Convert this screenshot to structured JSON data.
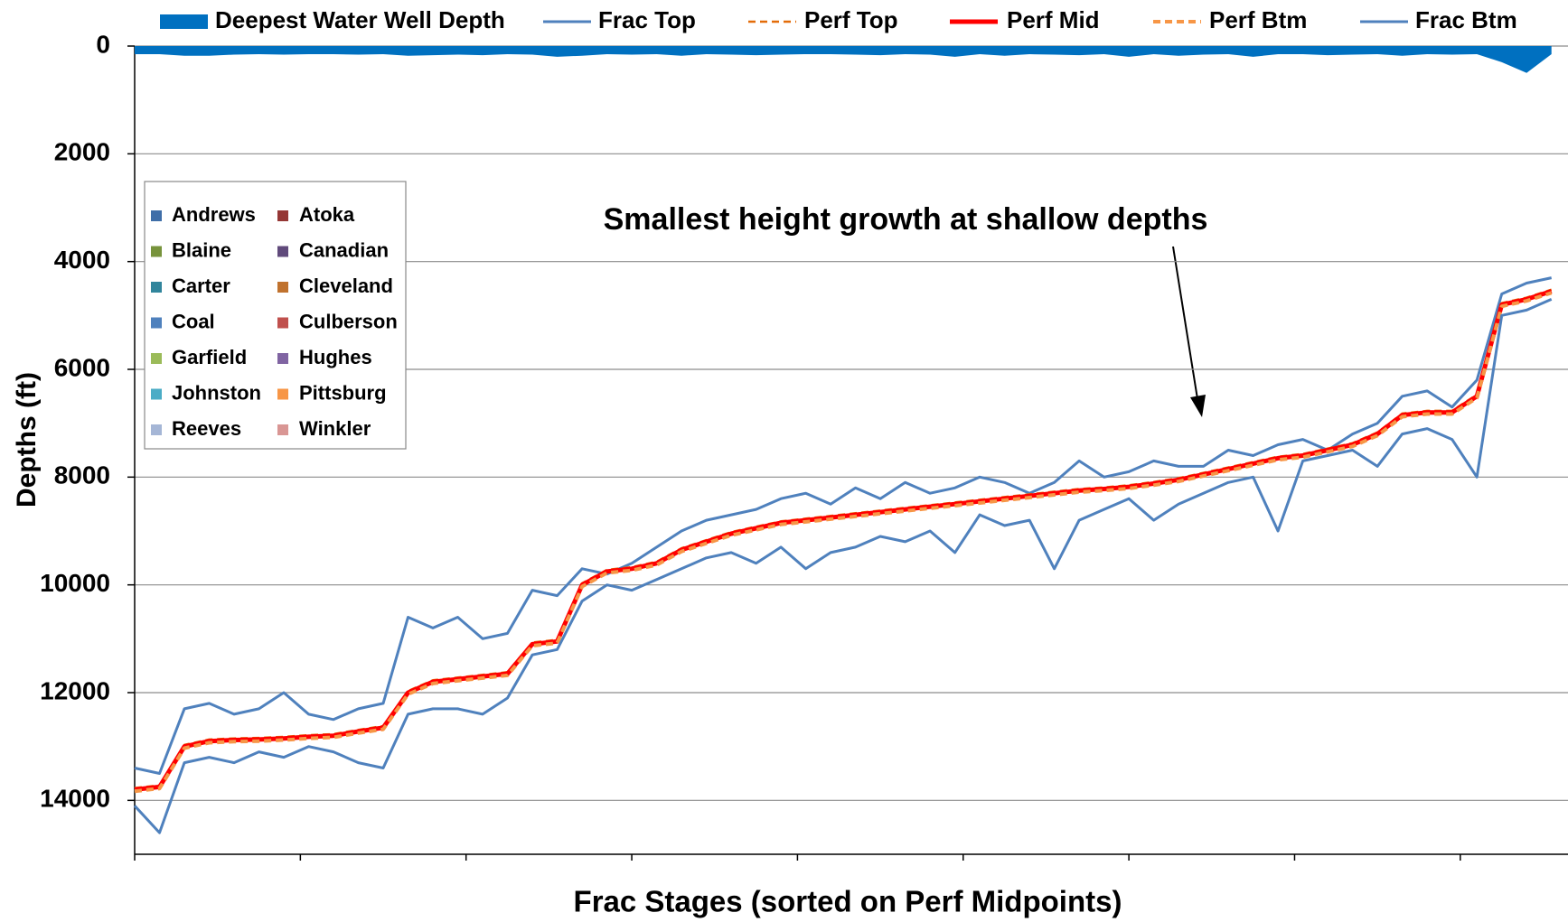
{
  "chart_data": {
    "type": "line",
    "annotation": "Smallest height growth at shallow depths",
    "xlabel": "Frac Stages  (sorted on  Perf Midpoints)",
    "ylabel": "Depths (ft)",
    "ylim": [
      0,
      15000
    ],
    "yticks": [
      0,
      2000,
      4000,
      6000,
      8000,
      10000,
      12000,
      14000
    ],
    "y_reversed": true,
    "xlim": [
      0,
      865
    ],
    "xticks": [
      0,
      100,
      200,
      300,
      400,
      500,
      600,
      700,
      800
    ],
    "grid": true,
    "x": [
      0,
      15,
      30,
      45,
      60,
      75,
      90,
      105,
      120,
      135,
      150,
      165,
      180,
      195,
      210,
      225,
      240,
      255,
      270,
      285,
      300,
      315,
      330,
      345,
      360,
      375,
      390,
      405,
      420,
      435,
      450,
      465,
      480,
      495,
      510,
      525,
      540,
      555,
      570,
      585,
      600,
      615,
      630,
      645,
      660,
      675,
      690,
      705,
      720,
      735,
      750,
      765,
      780,
      795,
      810,
      825,
      840,
      855
    ],
    "series": [
      {
        "name": "Deepest Water Well Depth",
        "color": "#0070c0",
        "kind": "area",
        "values": [
          150,
          150,
          180,
          180,
          160,
          150,
          160,
          150,
          150,
          160,
          150,
          180,
          170,
          160,
          170,
          150,
          160,
          200,
          180,
          150,
          160,
          150,
          180,
          150,
          160,
          170,
          160,
          150,
          150,
          160,
          170,
          150,
          160,
          200,
          150,
          180,
          150,
          160,
          170,
          150,
          200,
          150,
          180,
          160,
          150,
          200,
          150,
          150,
          170,
          160,
          150,
          180,
          150,
          160,
          150,
          300,
          500,
          150
        ]
      },
      {
        "name": "Frac Top",
        "color": "#4f81bd",
        "kind": "line",
        "width": 3,
        "values": [
          13400,
          13500,
          12300,
          12200,
          12400,
          12300,
          12000,
          12400,
          12500,
          12300,
          12200,
          10600,
          10800,
          10600,
          11000,
          10900,
          10100,
          10200,
          9700,
          9800,
          9600,
          9300,
          9000,
          8800,
          8700,
          8600,
          8400,
          8300,
          8500,
          8200,
          8400,
          8100,
          8300,
          8200,
          8000,
          8100,
          8300,
          8100,
          7700,
          8000,
          7900,
          7700,
          7800,
          7800,
          7500,
          7600,
          7400,
          7300,
          7500,
          7200,
          7000,
          6500,
          6400,
          6700,
          6200,
          4600,
          4400,
          4300
        ]
      },
      {
        "name": "Perf Top",
        "color": "#e36c09",
        "kind": "line",
        "width": 2.5,
        "dash": true,
        "values": [
          13770,
          13720,
          12970,
          12870,
          12850,
          12840,
          12820,
          12790,
          12770,
          12690,
          12620,
          11970,
          11770,
          11720,
          11670,
          11620,
          11070,
          11020,
          9970,
          9720,
          9670,
          9570,
          9320,
          9170,
          9020,
          8920,
          8820,
          8770,
          8720,
          8670,
          8620,
          8570,
          8520,
          8470,
          8420,
          8370,
          8320,
          8270,
          8220,
          8190,
          8150,
          8090,
          8020,
          7920,
          7820,
          7720,
          7620,
          7570,
          7470,
          7370,
          7170,
          6820,
          6770,
          6770,
          6470,
          4770,
          4670,
          4520
        ]
      },
      {
        "name": "Perf Mid",
        "color": "#ff0000",
        "kind": "line",
        "width": 5,
        "values": [
          13800,
          13750,
          13000,
          12900,
          12880,
          12870,
          12850,
          12820,
          12800,
          12720,
          12650,
          12000,
          11800,
          11750,
          11700,
          11650,
          11100,
          11050,
          10000,
          9750,
          9700,
          9600,
          9350,
          9200,
          9050,
          8950,
          8850,
          8800,
          8750,
          8700,
          8650,
          8600,
          8550,
          8500,
          8450,
          8400,
          8350,
          8300,
          8250,
          8220,
          8180,
          8120,
          8050,
          7950,
          7850,
          7750,
          7650,
          7600,
          7500,
          7400,
          7200,
          6850,
          6800,
          6800,
          6500,
          4800,
          4700,
          4550
        ]
      },
      {
        "name": "Perf Btm",
        "color": "#f79646",
        "kind": "line",
        "width": 4,
        "dash": true,
        "values": [
          13830,
          13780,
          13030,
          12930,
          12910,
          12900,
          12880,
          12850,
          12830,
          12750,
          12680,
          12030,
          11830,
          11780,
          11730,
          11680,
          11130,
          11080,
          10030,
          9780,
          9730,
          9630,
          9380,
          9230,
          9080,
          8980,
          8880,
          8830,
          8780,
          8730,
          8680,
          8630,
          8580,
          8530,
          8480,
          8430,
          8380,
          8330,
          8280,
          8250,
          8210,
          8150,
          8080,
          7980,
          7880,
          7780,
          7680,
          7630,
          7530,
          7430,
          7230,
          6880,
          6830,
          6830,
          6530,
          4830,
          4730,
          4580
        ]
      },
      {
        "name": "Frac Btm",
        "color": "#4f81bd",
        "kind": "line",
        "width": 3,
        "values": [
          14100,
          14600,
          13300,
          13200,
          13300,
          13100,
          13200,
          13000,
          13100,
          13300,
          13400,
          12400,
          12300,
          12300,
          12400,
          12100,
          11300,
          11200,
          10300,
          10000,
          10100,
          9900,
          9700,
          9500,
          9400,
          9600,
          9300,
          9700,
          9400,
          9300,
          9100,
          9200,
          9000,
          9400,
          8700,
          8900,
          8800,
          9700,
          8800,
          8600,
          8400,
          8800,
          8500,
          8300,
          8100,
          8000,
          9000,
          7700,
          7600,
          7500,
          7800,
          7200,
          7100,
          7300,
          8000,
          5000,
          4900,
          4700
        ]
      }
    ],
    "county_legend": [
      {
        "name": "Andrews",
        "color": "#3f6ea8"
      },
      {
        "name": "Atoka",
        "color": "#953735"
      },
      {
        "name": "Blaine",
        "color": "#77933c"
      },
      {
        "name": "Canadian",
        "color": "#604a7b"
      },
      {
        "name": "Carter",
        "color": "#31859c"
      },
      {
        "name": "Cleveland",
        "color": "#c0722e"
      },
      {
        "name": "Coal",
        "color": "#4f81bd"
      },
      {
        "name": "Culberson",
        "color": "#c0504d"
      },
      {
        "name": "Garfield",
        "color": "#9bbb59"
      },
      {
        "name": "Hughes",
        "color": "#8064a2"
      },
      {
        "name": "Johnston",
        "color": "#4bacc6"
      },
      {
        "name": "Pittsburg",
        "color": "#f79646"
      },
      {
        "name": "Reeves",
        "color": "#a5b6d6"
      },
      {
        "name": "Winkler",
        "color": "#d99694"
      }
    ]
  }
}
